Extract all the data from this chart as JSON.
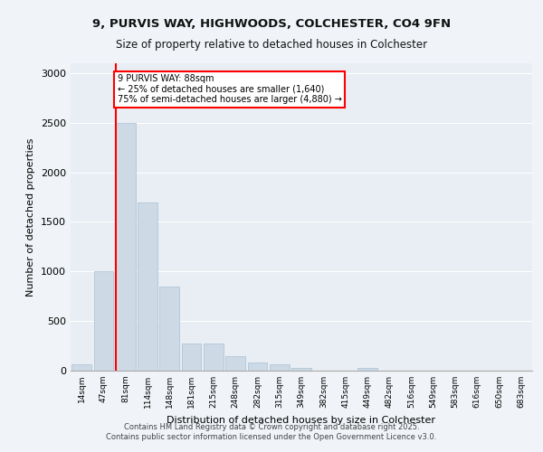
{
  "title_line1": "9, PURVIS WAY, HIGHWOODS, COLCHESTER, CO4 9FN",
  "title_line2": "Size of property relative to detached houses in Colchester",
  "xlabel": "Distribution of detached houses by size in Colchester",
  "ylabel": "Number of detached properties",
  "bar_color": "#cdd9e5",
  "bar_edge_color": "#a8c0d4",
  "background_color": "#e8eef4",
  "grid_color": "#ffffff",
  "categories": [
    "14sqm",
    "47sqm",
    "81sqm",
    "114sqm",
    "148sqm",
    "181sqm",
    "215sqm",
    "248sqm",
    "282sqm",
    "315sqm",
    "349sqm",
    "382sqm",
    "415sqm",
    "449sqm",
    "482sqm",
    "516sqm",
    "549sqm",
    "583sqm",
    "616sqm",
    "650sqm",
    "683sqm"
  ],
  "values": [
    60,
    1000,
    2500,
    1700,
    850,
    270,
    270,
    150,
    80,
    60,
    30,
    0,
    0,
    30,
    0,
    0,
    0,
    0,
    0,
    0,
    0
  ],
  "red_line_x": 1.55,
  "annotation_text": "9 PURVIS WAY: 88sqm\n← 25% of detached houses are smaller (1,640)\n75% of semi-detached houses are larger (4,880) →",
  "ylim": [
    0,
    3100
  ],
  "yticks": [
    0,
    500,
    1000,
    1500,
    2000,
    2500,
    3000
  ],
  "footer_line1": "Contains HM Land Registry data © Crown copyright and database right 2025.",
  "footer_line2": "Contains public sector information licensed under the Open Government Licence v3.0."
}
